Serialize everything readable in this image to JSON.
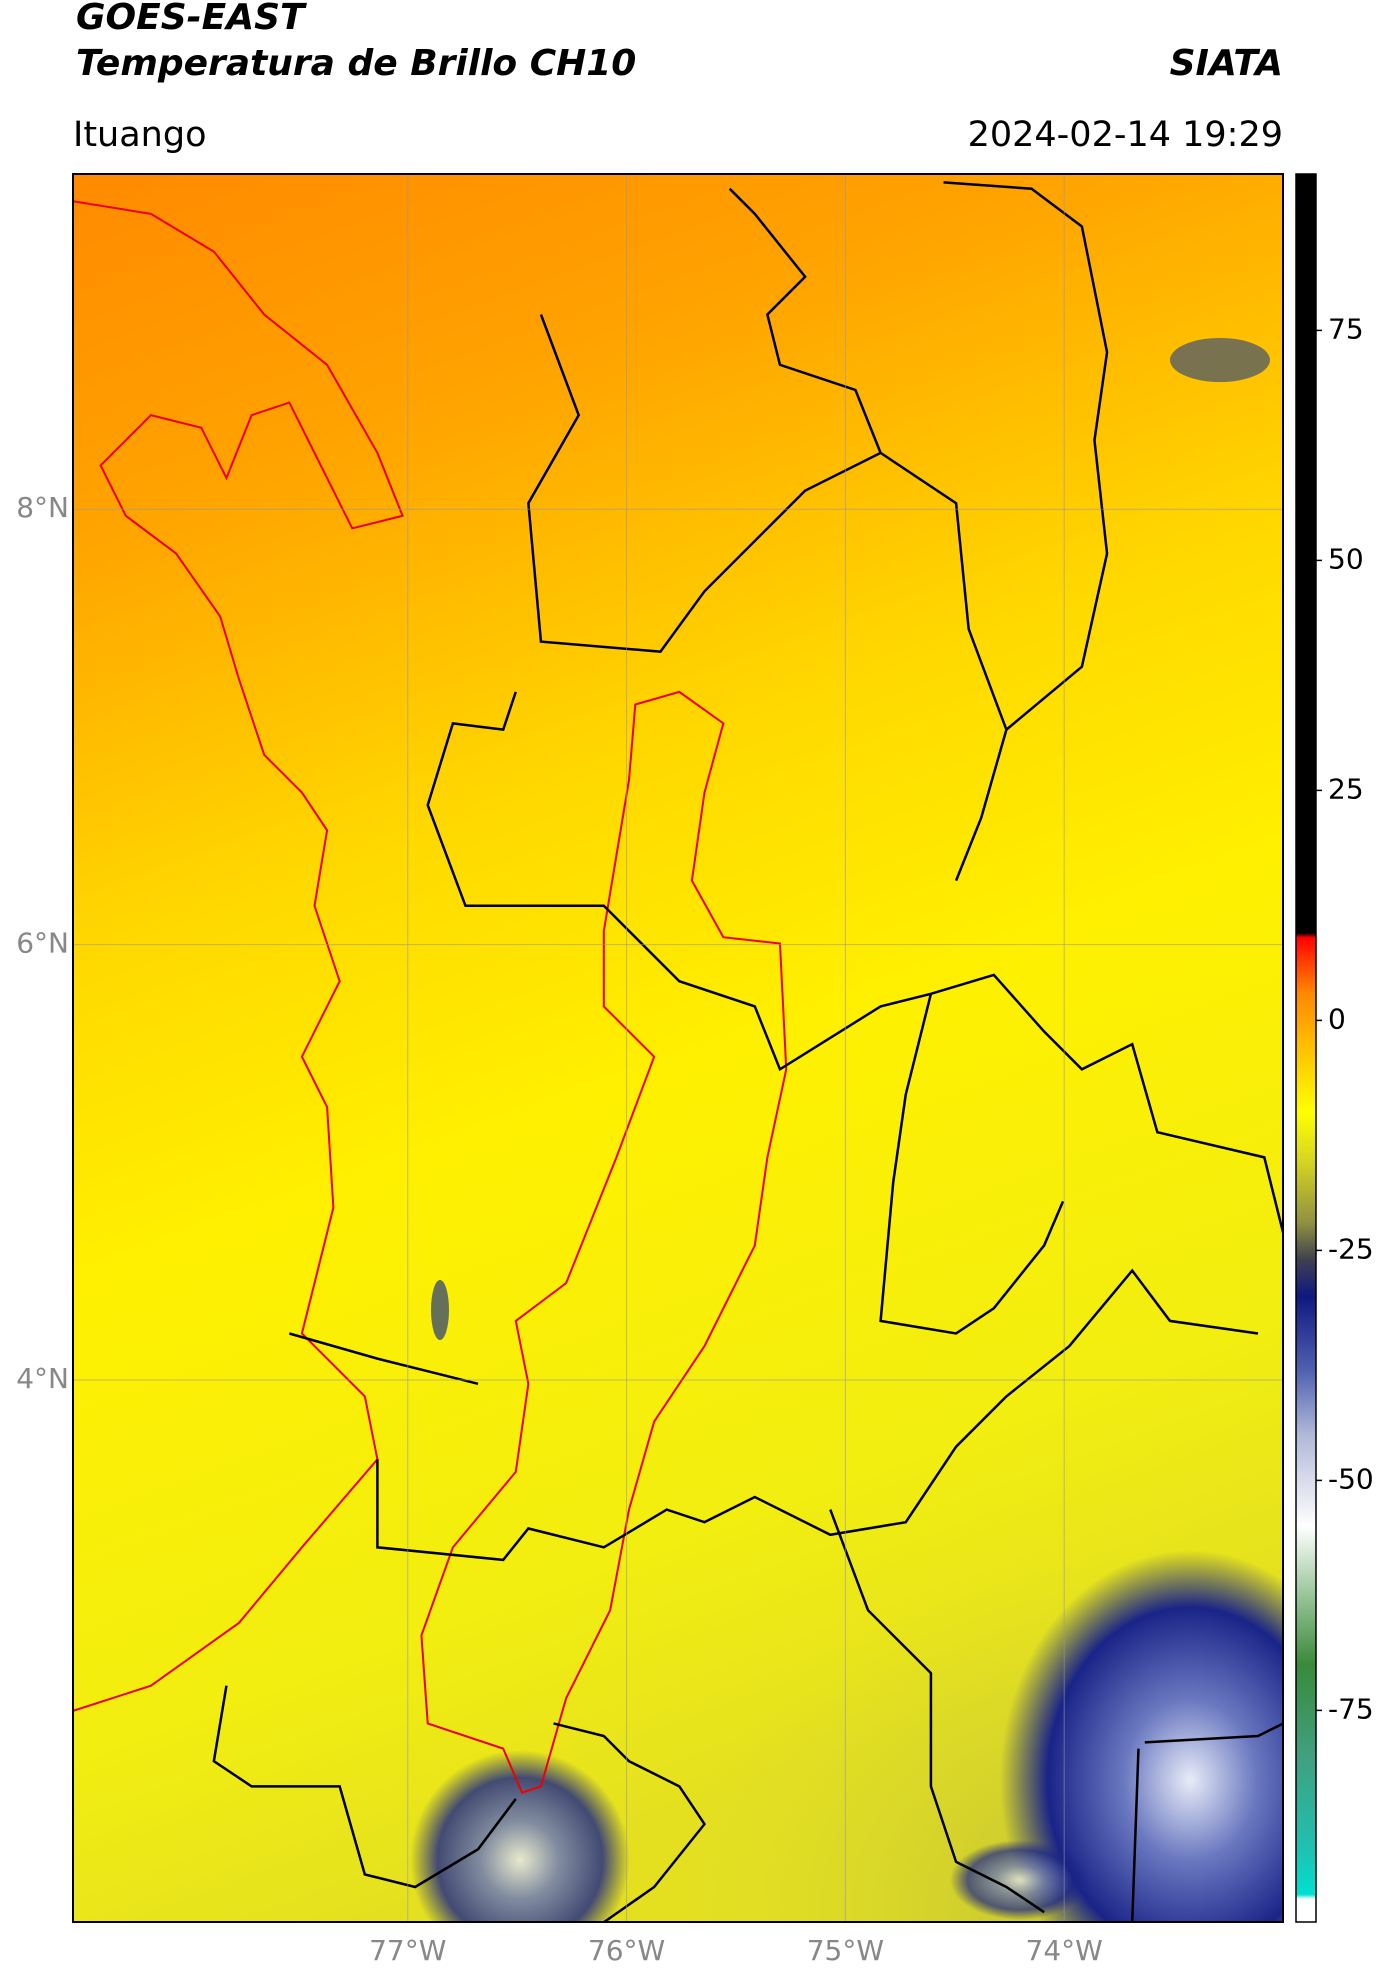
{
  "chart_data": {
    "type": "map",
    "title": "GOES-EAST",
    "subtitle": "Temperatura de Brillo CH10",
    "source": "SIATA",
    "location": "Ituango",
    "datetime": "2024-02-14 19:29",
    "xlim": [
      -78.53,
      -73.0
    ],
    "ylim": [
      1.51,
      9.54
    ],
    "xticks": [
      {
        "value": -77,
        "label": "77°W"
      },
      {
        "value": -76,
        "label": "76°W"
      },
      {
        "value": -75,
        "label": "75°W"
      },
      {
        "value": -74,
        "label": "74°W"
      }
    ],
    "yticks": [
      {
        "value": 4,
        "label": "4°N"
      },
      {
        "value": 6,
        "label": "6°N"
      },
      {
        "value": 8,
        "label": "8°N"
      }
    ],
    "grid": true,
    "clim": [
      -98,
      92
    ],
    "cticks": [
      -75,
      -50,
      -25,
      0,
      25,
      50,
      75
    ],
    "colorscale": [
      {
        "value": -98,
        "color": "#ffffff"
      },
      {
        "value": -95.5,
        "color": "#ffffff"
      },
      {
        "value": -95,
        "color": "#00e0d0"
      },
      {
        "value": -90,
        "color": "#20c0b0"
      },
      {
        "value": -80,
        "color": "#40a080"
      },
      {
        "value": -70,
        "color": "#3a8a3a"
      },
      {
        "value": -62,
        "color": "#a0c8a0"
      },
      {
        "value": -55,
        "color": "#ffffff"
      },
      {
        "value": -45,
        "color": "#b0b8d8"
      },
      {
        "value": -38,
        "color": "#5060b0"
      },
      {
        "value": -30,
        "color": "#101880"
      },
      {
        "value": -26,
        "color": "#404050"
      },
      {
        "value": -22,
        "color": "#909040"
      },
      {
        "value": -15,
        "color": "#d8d820"
      },
      {
        "value": -10,
        "color": "#ffff00"
      },
      {
        "value": -3,
        "color": "#ffc000"
      },
      {
        "value": 3,
        "color": "#ff8800"
      },
      {
        "value": 7,
        "color": "#ff3000"
      },
      {
        "value": 9,
        "color": "#ff0000"
      },
      {
        "value": 9.5,
        "color": "#000000"
      },
      {
        "value": 92,
        "color": "#000000"
      }
    ]
  }
}
